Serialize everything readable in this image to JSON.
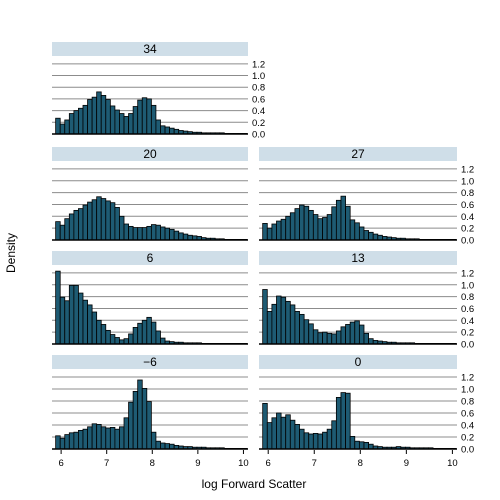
{
  "chart_data": {
    "type": "bar",
    "xlabel": "log Forward Scatter",
    "ylabel": "Density",
    "x_range": [
      5.8,
      10.1
    ],
    "x_ticks": [
      "6",
      "7",
      "8",
      "9",
      "10"
    ],
    "y_range": [
      0,
      1.3
    ],
    "y_ticks": [
      "0.0",
      "0.2",
      "0.4",
      "0.6",
      "0.8",
      "1.0",
      "1.2"
    ],
    "bin_start": 5.88,
    "bin_width": 0.1,
    "grid": true,
    "panels": [
      {
        "strip": "34",
        "values": [
          0.27,
          0.17,
          0.24,
          0.35,
          0.4,
          0.44,
          0.49,
          0.59,
          0.63,
          0.72,
          0.66,
          0.59,
          0.48,
          0.41,
          0.35,
          0.3,
          0.35,
          0.47,
          0.58,
          0.62,
          0.6,
          0.49,
          0.24,
          0.14,
          0.12,
          0.1,
          0.08,
          0.06,
          0.05,
          0.04,
          0.03,
          0.03,
          0.02,
          0.02,
          0.02,
          0.02,
          0.02,
          0.01,
          0.01,
          0.01,
          0.01,
          0.01
        ]
      },
      {
        "strip": "20",
        "values": [
          0.31,
          0.25,
          0.36,
          0.44,
          0.5,
          0.53,
          0.59,
          0.64,
          0.68,
          0.73,
          0.7,
          0.66,
          0.63,
          0.55,
          0.4,
          0.27,
          0.23,
          0.21,
          0.21,
          0.21,
          0.23,
          0.26,
          0.25,
          0.22,
          0.2,
          0.18,
          0.15,
          0.12,
          0.1,
          0.08,
          0.07,
          0.06,
          0.04,
          0.03,
          0.03,
          0.02,
          0.02,
          0.01,
          0.01,
          0.01,
          0.01,
          0.01
        ]
      },
      {
        "strip": "27",
        "values": [
          0.28,
          0.2,
          0.27,
          0.32,
          0.35,
          0.4,
          0.46,
          0.53,
          0.59,
          0.57,
          0.5,
          0.43,
          0.36,
          0.38,
          0.43,
          0.56,
          0.67,
          0.74,
          0.57,
          0.34,
          0.29,
          0.22,
          0.16,
          0.13,
          0.1,
          0.08,
          0.06,
          0.05,
          0.04,
          0.03,
          0.03,
          0.02,
          0.02,
          0.02,
          0.01,
          0.01,
          0.01,
          0.01,
          0.01,
          0.01,
          0.01,
          0.01
        ]
      },
      {
        "strip": "6",
        "values": [
          1.23,
          0.79,
          0.73,
          0.99,
          0.99,
          0.86,
          0.74,
          0.66,
          0.54,
          0.4,
          0.33,
          0.23,
          0.16,
          0.11,
          0.07,
          0.09,
          0.17,
          0.28,
          0.35,
          0.4,
          0.45,
          0.37,
          0.22,
          0.1,
          0.05,
          0.04,
          0.03,
          0.03,
          0.02,
          0.02,
          0.02,
          0.02,
          0.01,
          0.01,
          0.01,
          0.01,
          0.01,
          0.01,
          0.01,
          0.01,
          0.01,
          0.01
        ]
      },
      {
        "strip": "13",
        "values": [
          0.92,
          0.55,
          0.67,
          0.81,
          0.79,
          0.72,
          0.66,
          0.55,
          0.5,
          0.41,
          0.34,
          0.24,
          0.19,
          0.2,
          0.18,
          0.17,
          0.22,
          0.29,
          0.33,
          0.37,
          0.39,
          0.32,
          0.18,
          0.09,
          0.06,
          0.05,
          0.04,
          0.03,
          0.03,
          0.02,
          0.02,
          0.02,
          0.02,
          0.01,
          0.01,
          0.01,
          0.01,
          0.01,
          0.01,
          0.01,
          0.01,
          0.01
        ]
      },
      {
        "strip": "−6",
        "values": [
          0.22,
          0.18,
          0.24,
          0.27,
          0.28,
          0.31,
          0.33,
          0.37,
          0.42,
          0.41,
          0.37,
          0.35,
          0.36,
          0.33,
          0.37,
          0.52,
          0.78,
          0.96,
          1.15,
          1.01,
          0.79,
          0.28,
          0.13,
          0.1,
          0.09,
          0.08,
          0.06,
          0.05,
          0.04,
          0.04,
          0.03,
          0.03,
          0.03,
          0.02,
          0.02,
          0.02,
          0.02,
          0.01,
          0.01,
          0.01,
          0.01,
          0.01
        ]
      },
      {
        "strip": "0",
        "values": [
          0.76,
          0.44,
          0.52,
          0.6,
          0.53,
          0.57,
          0.48,
          0.41,
          0.33,
          0.27,
          0.25,
          0.26,
          0.25,
          0.28,
          0.33,
          0.47,
          0.86,
          0.94,
          0.93,
          0.21,
          0.13,
          0.12,
          0.11,
          0.08,
          0.05,
          0.04,
          0.03,
          0.03,
          0.03,
          0.04,
          0.03,
          0.03,
          0.02,
          0.02,
          0.02,
          0.02,
          0.02,
          0.01,
          0.01,
          0.01,
          0.01,
          0.01
        ]
      }
    ]
  }
}
